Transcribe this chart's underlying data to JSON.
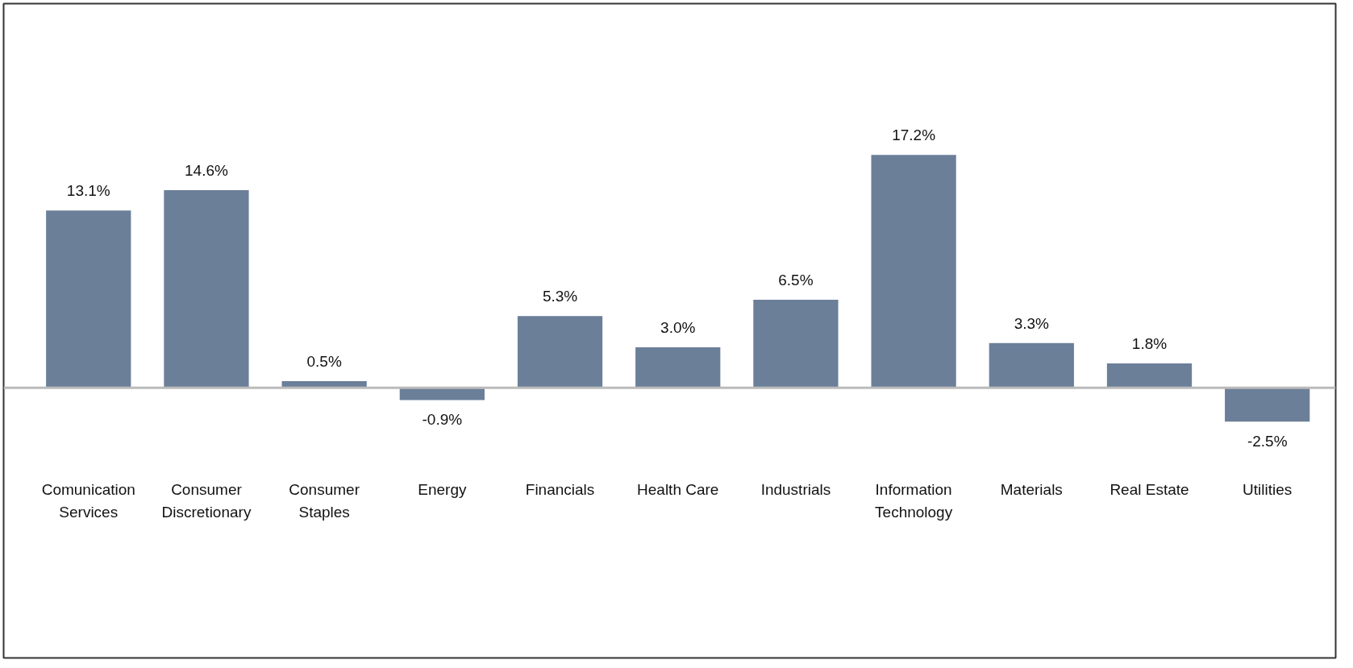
{
  "chart_data": {
    "type": "bar",
    "categories": [
      "Comunication Services",
      "Consumer Discretionary",
      "Consumer Staples",
      "Energy",
      "Financials",
      "Health Care",
      "Industrials",
      "Information Technology",
      "Materials",
      "Real Estate",
      "Utilities"
    ],
    "values": [
      13.1,
      14.6,
      0.5,
      -0.9,
      5.3,
      3.0,
      6.5,
      17.2,
      3.3,
      1.8,
      -2.5
    ],
    "value_labels": [
      "13.1%",
      "14.6%",
      "0.5%",
      "-0.9%",
      "5.3%",
      "3.0%",
      "6.5%",
      "17.2%",
      "3.3%",
      "1.8%",
      "-2.5%"
    ],
    "color": "#6b7f99",
    "grid": false
  }
}
